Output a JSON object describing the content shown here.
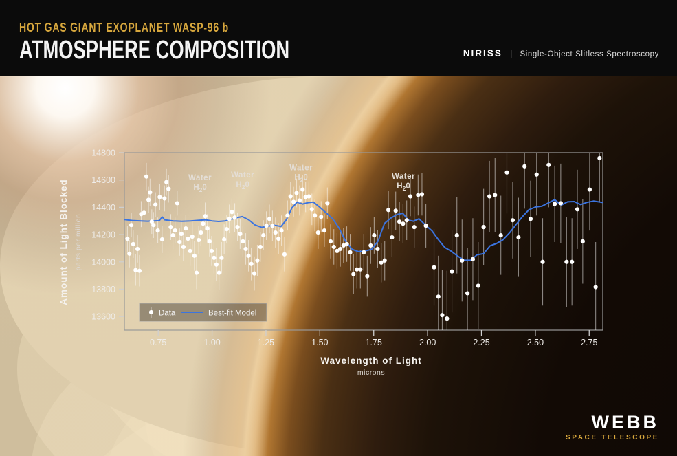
{
  "header": {
    "kicker": "HOT GAS GIANT EXOPLANET WASP-96 b",
    "title": "ATMOSPHERE COMPOSITION",
    "instrument": "NIRISS",
    "separator": "|",
    "mode": "Single-Object Slitless Spectroscopy"
  },
  "footer": {
    "logo": "WEBB",
    "sublogo": "SPACE TELESCOPE"
  },
  "colors": {
    "gold": "#D7A73D",
    "model_blue": "#3B74E0",
    "data_white": "#FFFFFF",
    "axis_line": "#999999",
    "tick_text": "#EFEDEA",
    "annotation_text": "#E4DED6",
    "error_bar": "rgba(255,255,255,0.5)"
  },
  "chart_data": {
    "type": "scatter",
    "title": "",
    "xlabel": "Wavelength of Light",
    "xunit": "microns",
    "ylabel": "Amount of Light Blocked",
    "yunit": "parts per million",
    "xlim": [
      0.593,
      2.813
    ],
    "ylim": [
      13500,
      14800
    ],
    "xticks": [
      0.75,
      1.0,
      1.25,
      1.5,
      1.75,
      2.0,
      2.25,
      2.5,
      2.75
    ],
    "yticks": [
      13600,
      13800,
      14000,
      14200,
      14400,
      14600,
      14800
    ],
    "grid": false,
    "legend": {
      "position": "bottom-left",
      "entries": [
        {
          "label": "Data",
          "type": "point"
        },
        {
          "label": "Best-fit Model",
          "type": "line"
        }
      ]
    },
    "annotations": [
      {
        "line1": "Water",
        "pre": "H",
        "sub": "2",
        "post": "0",
        "x": 0.944,
        "y": 14598
      },
      {
        "line1": "Water",
        "pre": "H",
        "sub": "2",
        "post": "0",
        "x": 1.142,
        "y": 14618
      },
      {
        "line1": "Water",
        "pre": "H",
        "sub": "2",
        "post": "0",
        "x": 1.413,
        "y": 14672
      },
      {
        "line1": "Water",
        "pre": "H",
        "sub": "2",
        "post": "0",
        "x": 1.888,
        "y": 14608
      }
    ],
    "series": [
      {
        "name": "Data",
        "type": "scatter",
        "point_format": [
          "wavelength_microns",
          "blocked_ppm",
          "error_ppm"
        ],
        "points": [
          [
            0.607,
            14170,
            95
          ],
          [
            0.616,
            14060,
            100
          ],
          [
            0.625,
            14270,
            90
          ],
          [
            0.634,
            14130,
            100
          ],
          [
            0.645,
            13940,
            115
          ],
          [
            0.654,
            14095,
            100
          ],
          [
            0.663,
            13935,
            115
          ],
          [
            0.671,
            14350,
            95
          ],
          [
            0.684,
            14360,
            90
          ],
          [
            0.695,
            14625,
            100
          ],
          [
            0.705,
            14455,
            95
          ],
          [
            0.712,
            14510,
            100
          ],
          [
            0.72,
            14295,
            90
          ],
          [
            0.728,
            14270,
            95
          ],
          [
            0.737,
            14420,
            90
          ],
          [
            0.748,
            14230,
            95
          ],
          [
            0.757,
            14475,
            95
          ],
          [
            0.768,
            14165,
            100
          ],
          [
            0.779,
            14465,
            95
          ],
          [
            0.788,
            14585,
            100
          ],
          [
            0.798,
            14535,
            100
          ],
          [
            0.808,
            14255,
            95
          ],
          [
            0.818,
            14195,
            100
          ],
          [
            0.828,
            14230,
            95
          ],
          [
            0.838,
            14430,
            90
          ],
          [
            0.849,
            14145,
            100
          ],
          [
            0.857,
            14205,
            100
          ],
          [
            0.867,
            14110,
            105
          ],
          [
            0.878,
            14245,
            100
          ],
          [
            0.888,
            14170,
            100
          ],
          [
            0.898,
            14080,
            110
          ],
          [
            0.908,
            14185,
            105
          ],
          [
            0.918,
            14045,
            110
          ],
          [
            0.928,
            13920,
            120
          ],
          [
            0.938,
            14160,
            105
          ],
          [
            0.948,
            14215,
            100
          ],
          [
            0.958,
            14280,
            100
          ],
          [
            0.968,
            14335,
            100
          ],
          [
            0.978,
            14245,
            105
          ],
          [
            0.988,
            14150,
            110
          ],
          [
            0.998,
            14080,
            110
          ],
          [
            1.009,
            14030,
            115
          ],
          [
            1.02,
            13980,
            120
          ],
          [
            1.032,
            13920,
            125
          ],
          [
            1.044,
            14030,
            115
          ],
          [
            1.056,
            14165,
            110
          ],
          [
            1.068,
            14240,
            105
          ],
          [
            1.08,
            14315,
            105
          ],
          [
            1.092,
            14365,
            100
          ],
          [
            1.105,
            14325,
            105
          ],
          [
            1.118,
            14255,
            105
          ],
          [
            1.13,
            14205,
            110
          ],
          [
            1.143,
            14150,
            110
          ],
          [
            1.156,
            14095,
            115
          ],
          [
            1.169,
            14045,
            115
          ],
          [
            1.182,
            13985,
            120
          ],
          [
            1.196,
            13915,
            125
          ],
          [
            1.21,
            14010,
            115
          ],
          [
            1.224,
            14110,
            110
          ],
          [
            1.238,
            14195,
            110
          ],
          [
            1.252,
            14265,
            105
          ],
          [
            1.266,
            14315,
            105
          ],
          [
            1.28,
            14265,
            110
          ],
          [
            1.294,
            14215,
            110
          ],
          [
            1.308,
            14170,
            115
          ],
          [
            1.322,
            14230,
            110
          ],
          [
            1.336,
            14055,
            125
          ],
          [
            1.35,
            14340,
            110
          ],
          [
            1.364,
            14480,
            105
          ],
          [
            1.378,
            14440,
            110
          ],
          [
            1.392,
            14505,
            105
          ],
          [
            1.406,
            14450,
            110
          ],
          [
            1.42,
            14530,
            105
          ],
          [
            1.434,
            14475,
            110
          ],
          [
            1.449,
            14480,
            110
          ],
          [
            1.463,
            14385,
            115
          ],
          [
            1.477,
            14340,
            115
          ],
          [
            1.492,
            14215,
            120
          ],
          [
            1.506,
            14330,
            115
          ],
          [
            1.521,
            14230,
            120
          ],
          [
            1.535,
            14430,
            115
          ],
          [
            1.55,
            14150,
            125
          ],
          [
            1.565,
            14110,
            130
          ],
          [
            1.58,
            14080,
            130
          ],
          [
            1.595,
            14095,
            130
          ],
          [
            1.61,
            14120,
            130
          ],
          [
            1.625,
            14130,
            130
          ],
          [
            1.641,
            14070,
            135
          ],
          [
            1.656,
            13910,
            145
          ],
          [
            1.672,
            13945,
            140
          ],
          [
            1.688,
            13945,
            140
          ],
          [
            1.704,
            14070,
            135
          ],
          [
            1.72,
            13895,
            150
          ],
          [
            1.736,
            14120,
            135
          ],
          [
            1.752,
            14195,
            135
          ],
          [
            1.768,
            14095,
            140
          ],
          [
            1.785,
            13995,
            145
          ],
          [
            1.801,
            14010,
            145
          ],
          [
            1.818,
            14380,
            140
          ],
          [
            1.835,
            14180,
            145
          ],
          [
            1.852,
            14375,
            140
          ],
          [
            1.869,
            14295,
            145
          ],
          [
            1.886,
            14280,
            145
          ],
          [
            1.903,
            14305,
            145
          ],
          [
            1.92,
            14480,
            145
          ],
          [
            1.938,
            14255,
            150
          ],
          [
            1.956,
            14490,
            150
          ],
          [
            1.974,
            14495,
            155
          ],
          [
            1.992,
            14265,
            160
          ],
          [
            2.03,
            13960,
            280
          ],
          [
            2.05,
            13745,
            300
          ],
          [
            2.068,
            13610,
            330
          ],
          [
            2.09,
            13585,
            350
          ],
          [
            2.113,
            13930,
            300
          ],
          [
            2.136,
            14195,
            280
          ],
          [
            2.16,
            14010,
            300
          ],
          [
            2.185,
            13770,
            330
          ],
          [
            2.21,
            14020,
            300
          ],
          [
            2.235,
            13825,
            320
          ],
          [
            2.26,
            14255,
            280
          ],
          [
            2.287,
            14480,
            260
          ],
          [
            2.313,
            14490,
            270
          ],
          [
            2.34,
            14195,
            290
          ],
          [
            2.368,
            14655,
            300
          ],
          [
            2.395,
            14305,
            280
          ],
          [
            2.422,
            14180,
            290
          ],
          [
            2.45,
            14700,
            310
          ],
          [
            2.478,
            14315,
            280
          ],
          [
            2.506,
            14640,
            300
          ],
          [
            2.534,
            14000,
            320
          ],
          [
            2.562,
            14710,
            310
          ],
          [
            2.59,
            14425,
            280
          ],
          [
            2.618,
            14430,
            290
          ],
          [
            2.645,
            14000,
            330
          ],
          [
            2.67,
            14000,
            320
          ],
          [
            2.695,
            14385,
            290
          ],
          [
            2.72,
            14150,
            310
          ],
          [
            2.752,
            14530,
            300
          ],
          [
            2.78,
            13815,
            330
          ],
          [
            2.798,
            14760,
            320
          ]
        ]
      },
      {
        "name": "Best-fit Model",
        "type": "line",
        "point_format": [
          "wavelength_microns",
          "blocked_ppm"
        ],
        "points": [
          [
            0.593,
            14310
          ],
          [
            0.63,
            14303
          ],
          [
            0.67,
            14300
          ],
          [
            0.7,
            14298
          ],
          [
            0.73,
            14300
          ],
          [
            0.755,
            14302
          ],
          [
            0.768,
            14330
          ],
          [
            0.78,
            14308
          ],
          [
            0.82,
            14300
          ],
          [
            0.86,
            14297
          ],
          [
            0.9,
            14300
          ],
          [
            0.94,
            14305
          ],
          [
            0.97,
            14308
          ],
          [
            1.0,
            14300
          ],
          [
            1.03,
            14296
          ],
          [
            1.06,
            14300
          ],
          [
            1.09,
            14312
          ],
          [
            1.12,
            14326
          ],
          [
            1.14,
            14332
          ],
          [
            1.17,
            14308
          ],
          [
            1.2,
            14270
          ],
          [
            1.23,
            14253
          ],
          [
            1.26,
            14262
          ],
          [
            1.29,
            14268
          ],
          [
            1.32,
            14260
          ],
          [
            1.345,
            14310
          ],
          [
            1.37,
            14395
          ],
          [
            1.395,
            14438
          ],
          [
            1.42,
            14424
          ],
          [
            1.445,
            14434
          ],
          [
            1.47,
            14438
          ],
          [
            1.5,
            14400
          ],
          [
            1.53,
            14358
          ],
          [
            1.56,
            14316
          ],
          [
            1.59,
            14245
          ],
          [
            1.62,
            14150
          ],
          [
            1.65,
            14092
          ],
          [
            1.68,
            14075
          ],
          [
            1.71,
            14080
          ],
          [
            1.74,
            14092
          ],
          [
            1.77,
            14152
          ],
          [
            1.8,
            14282
          ],
          [
            1.83,
            14322
          ],
          [
            1.86,
            14348
          ],
          [
            1.885,
            14356
          ],
          [
            1.91,
            14306
          ],
          [
            1.935,
            14298
          ],
          [
            1.96,
            14316
          ],
          [
            1.99,
            14270
          ],
          [
            2.02,
            14228
          ],
          [
            2.05,
            14163
          ],
          [
            2.08,
            14105
          ],
          [
            2.11,
            14078
          ],
          [
            2.14,
            14042
          ],
          [
            2.17,
            14012
          ],
          [
            2.2,
            14012
          ],
          [
            2.23,
            14052
          ],
          [
            2.26,
            14060
          ],
          [
            2.29,
            14118
          ],
          [
            2.32,
            14135
          ],
          [
            2.35,
            14162
          ],
          [
            2.38,
            14212
          ],
          [
            2.41,
            14272
          ],
          [
            2.44,
            14332
          ],
          [
            2.47,
            14382
          ],
          [
            2.5,
            14402
          ],
          [
            2.53,
            14408
          ],
          [
            2.56,
            14432
          ],
          [
            2.59,
            14456
          ],
          [
            2.62,
            14416
          ],
          [
            2.65,
            14440
          ],
          [
            2.68,
            14442
          ],
          [
            2.71,
            14420
          ],
          [
            2.74,
            14436
          ],
          [
            2.77,
            14446
          ],
          [
            2.813,
            14435
          ]
        ]
      }
    ]
  }
}
